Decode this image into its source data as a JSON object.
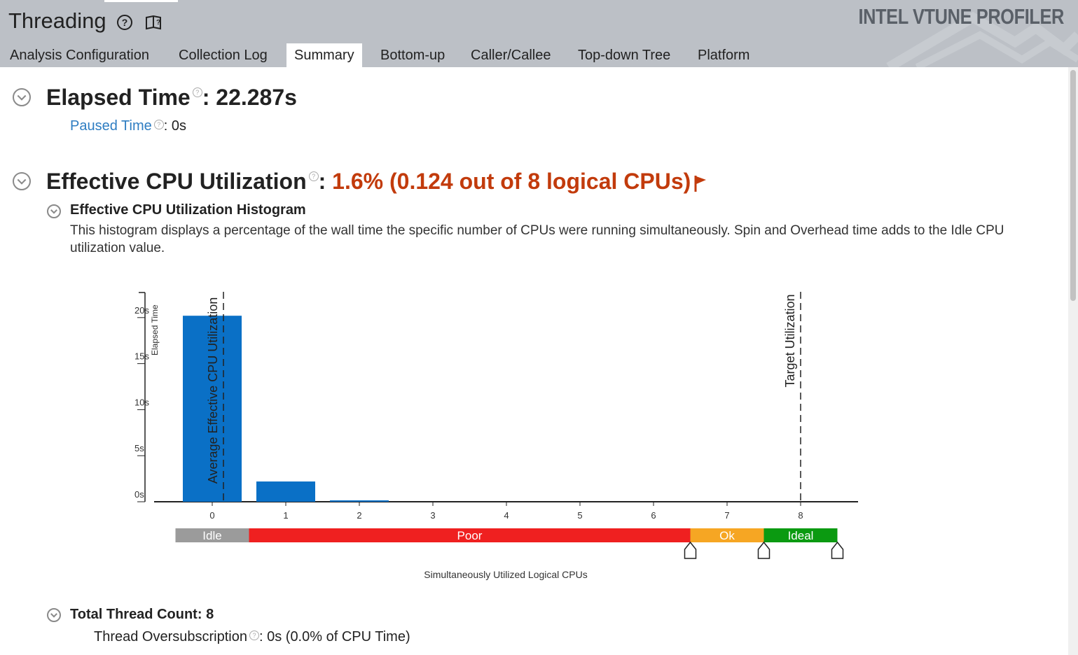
{
  "app": {
    "title": "Threading",
    "brand": "INTEL VTUNE PROFILER",
    "icons": {
      "help": "help-circle-icon",
      "docs": "book-icon"
    }
  },
  "tabs": [
    {
      "label": "Analysis Configuration",
      "active": false
    },
    {
      "label": "Collection Log",
      "active": false
    },
    {
      "label": "Summary",
      "active": true
    },
    {
      "label": "Bottom-up",
      "active": false
    },
    {
      "label": "Caller/Callee",
      "active": false
    },
    {
      "label": "Top-down Tree",
      "active": false
    },
    {
      "label": "Platform",
      "active": false
    }
  ],
  "elapsed": {
    "label": "Elapsed Time",
    "value": ": 22.287s",
    "paused_label": "Paused Time",
    "paused_value": ":  0s"
  },
  "cpu": {
    "label": "Effective CPU Utilization",
    "sep": ": ",
    "value": "1.6% (0.124 out of 8 logical CPUs)",
    "flag_icon": "flag-icon",
    "color": "#c23b0c"
  },
  "histogram": {
    "title": "Effective CPU Utilization Histogram",
    "description": "This histogram displays a percentage of the wall time the specific number of CPUs were running simultaneously. Spin and Overhead time adds to the Idle CPU utilization value."
  },
  "chart_data": {
    "type": "bar",
    "categories": [
      "0",
      "1",
      "2",
      "3",
      "4",
      "5",
      "6",
      "7",
      "8"
    ],
    "values": [
      20.2,
      2.2,
      0.15,
      0,
      0,
      0,
      0,
      0,
      0
    ],
    "ylabel": "Elapsed Time",
    "xlabel": "Simultaneously Utilized Logical CPUs",
    "yticks": [
      "0s",
      "5s",
      "10s",
      "15s",
      "20s"
    ],
    "ylim": [
      0,
      22
    ],
    "bar_color": "#0a70c6",
    "markers": [
      {
        "label": "Average Effective CPU Utilization",
        "x": 0.124
      },
      {
        "label": "Target Utilization",
        "x": 8
      }
    ],
    "zones": [
      {
        "label": "Idle",
        "from": -0.5,
        "to": 0.5,
        "color": "#9b9b9b"
      },
      {
        "label": "Poor",
        "from": 0.5,
        "to": 6.5,
        "color": "#ef2020"
      },
      {
        "label": "Ok",
        "from": 6.5,
        "to": 7.5,
        "color": "#f6a623"
      },
      {
        "label": "Ideal",
        "from": 7.5,
        "to": 8.5,
        "color": "#0b9a11"
      }
    ],
    "grid": false
  },
  "threads": {
    "label": "Total Thread Count:",
    "value": "8",
    "oversub_label": "Thread Oversubscription",
    "oversub_value": ":  0s (0.0% of CPU Time)"
  }
}
